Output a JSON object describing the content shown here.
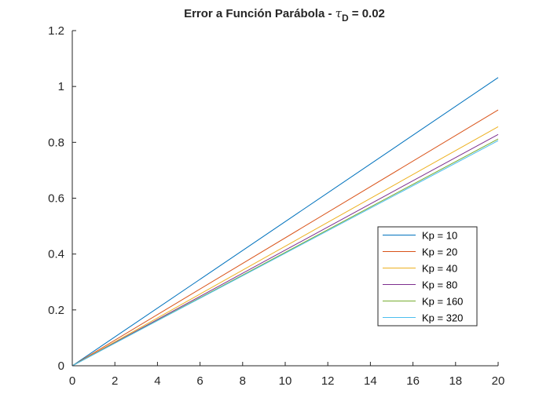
{
  "chart_data": {
    "type": "line",
    "title": {
      "main": "Error a Función Parábola - ",
      "symbol": "τ",
      "subscript": "D",
      "suffix": " = 0.02"
    },
    "xlabel": "",
    "ylabel": "",
    "xlim": [
      0,
      20
    ],
    "ylim": [
      0,
      1.2
    ],
    "xticks": [
      0,
      2,
      4,
      6,
      8,
      10,
      12,
      14,
      16,
      18,
      20
    ],
    "yticks": [
      0,
      0.2,
      0.4,
      0.6,
      0.8,
      1,
      1.2
    ],
    "xtick_labels": [
      "0",
      "2",
      "4",
      "6",
      "8",
      "10",
      "12",
      "14",
      "16",
      "18",
      "20"
    ],
    "ytick_labels": [
      "0",
      "0.2",
      "0.4",
      "0.6",
      "0.8",
      "1",
      "1.2"
    ],
    "grid": false,
    "legend_position": "lower-right",
    "series": [
      {
        "name": "Kp = 10",
        "color": "#0072BD",
        "x": [
          0,
          20
        ],
        "y": [
          0,
          1.032
        ]
      },
      {
        "name": "Kp = 20",
        "color": "#D95319",
        "x": [
          0,
          20
        ],
        "y": [
          0,
          0.916
        ]
      },
      {
        "name": "Kp = 40",
        "color": "#EDB120",
        "x": [
          0,
          20
        ],
        "y": [
          0,
          0.856
        ]
      },
      {
        "name": "Kp = 80",
        "color": "#7E2F8E",
        "x": [
          0,
          20
        ],
        "y": [
          0,
          0.828
        ]
      },
      {
        "name": "Kp = 160",
        "color": "#77AC30",
        "x": [
          0,
          20
        ],
        "y": [
          0,
          0.812
        ]
      },
      {
        "name": "Kp = 320",
        "color": "#4DBEEE",
        "x": [
          0,
          20
        ],
        "y": [
          0,
          0.806
        ]
      }
    ]
  }
}
